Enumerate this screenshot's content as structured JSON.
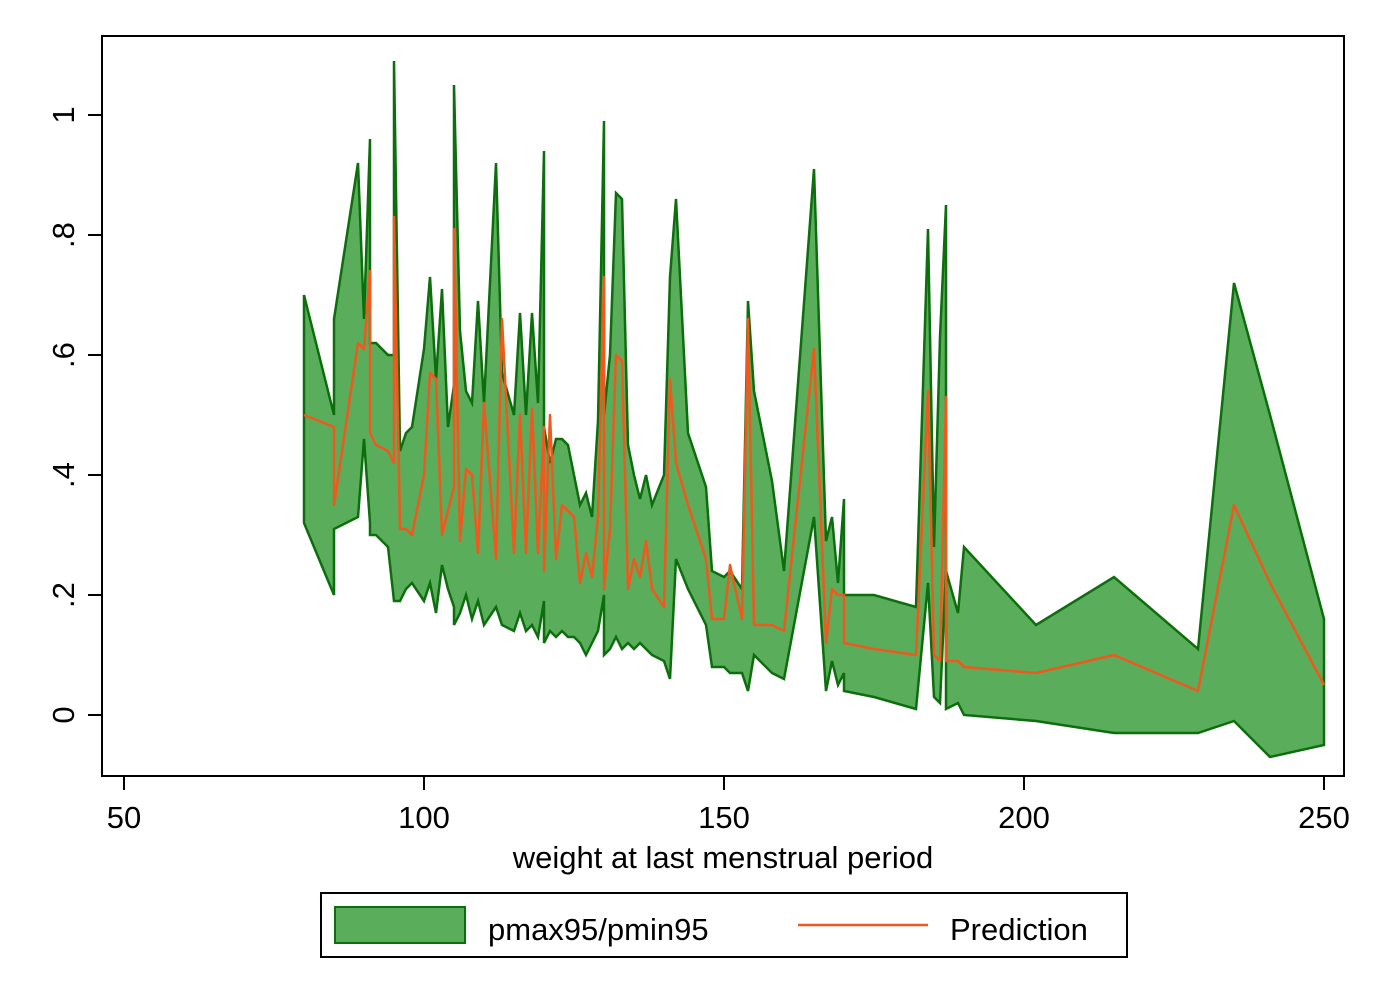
{
  "chart_data": {
    "type": "area",
    "xlabel": "weight at last menstrual period",
    "ylabel": "",
    "xlim": [
      50,
      250
    ],
    "ylim": [
      -0.1,
      1.13
    ],
    "xticks": [
      {
        "value": 50,
        "label": "50"
      },
      {
        "value": 100,
        "label": "100"
      },
      {
        "value": 150,
        "label": "150"
      },
      {
        "value": 200,
        "label": "200"
      },
      {
        "value": 250,
        "label": "250"
      }
    ],
    "yticks": [
      {
        "value": 0,
        "label": "0"
      },
      {
        "value": 0.2,
        "label": ".2"
      },
      {
        "value": 0.4,
        "label": ".4"
      },
      {
        "value": 0.6,
        "label": ".6"
      },
      {
        "value": 0.8,
        "label": ".8"
      },
      {
        "value": 1,
        "label": "1"
      }
    ],
    "grid": false,
    "legend_position": "bottom",
    "colors": {
      "band_fill": "#5aad5a",
      "band_stroke": "#0c6e0c",
      "prediction": "#f0581e"
    },
    "band": {
      "name": "pmax95/pmin95",
      "x": [
        80,
        85,
        85,
        89,
        90,
        91,
        91,
        92,
        94,
        95,
        95,
        96,
        97,
        98,
        100,
        101,
        102,
        103,
        104,
        105,
        105,
        106,
        107,
        108,
        109,
        110,
        112,
        113,
        115,
        116,
        117,
        118,
        119,
        120,
        120,
        121,
        122,
        123,
        124,
        125,
        126,
        127,
        128,
        129,
        130,
        130,
        131,
        132,
        133,
        134,
        135,
        136,
        137,
        138,
        140,
        141,
        142,
        144,
        147,
        148,
        150,
        151,
        153,
        154,
        155,
        158,
        160,
        165,
        167,
        168,
        169,
        170,
        170,
        175,
        182,
        184,
        185,
        186,
        187,
        187,
        189,
        190,
        202,
        215,
        229,
        235,
        241,
        250
      ],
      "pmax": [
        0.7,
        0.5,
        0.66,
        0.92,
        0.66,
        0.96,
        0.62,
        0.62,
        0.6,
        0.6,
        1.09,
        0.44,
        0.47,
        0.48,
        0.61,
        0.73,
        0.56,
        0.71,
        0.48,
        0.55,
        1.05,
        0.64,
        0.54,
        0.52,
        0.69,
        0.52,
        0.92,
        0.57,
        0.5,
        0.67,
        0.5,
        0.67,
        0.52,
        0.94,
        0.48,
        0.42,
        0.46,
        0.46,
        0.45,
        0.4,
        0.35,
        0.37,
        0.33,
        0.49,
        0.99,
        0.5,
        0.6,
        0.87,
        0.86,
        0.45,
        0.4,
        0.36,
        0.4,
        0.35,
        0.4,
        0.73,
        0.86,
        0.47,
        0.38,
        0.24,
        0.23,
        0.24,
        0.21,
        0.69,
        0.54,
        0.39,
        0.24,
        0.91,
        0.29,
        0.33,
        0.22,
        0.36,
        0.2,
        0.2,
        0.18,
        0.81,
        0.28,
        0.63,
        0.85,
        0.24,
        0.17,
        0.28,
        0.15,
        0.23,
        0.11,
        0.72,
        0.5,
        0.16
      ],
      "pmin": [
        0.32,
        0.2,
        0.31,
        0.33,
        0.46,
        0.32,
        0.3,
        0.3,
        0.28,
        0.19,
        0.19,
        0.19,
        0.21,
        0.22,
        0.19,
        0.22,
        0.17,
        0.25,
        0.21,
        0.18,
        0.15,
        0.17,
        0.2,
        0.16,
        0.19,
        0.15,
        0.18,
        0.15,
        0.14,
        0.17,
        0.14,
        0.15,
        0.13,
        0.19,
        0.12,
        0.14,
        0.13,
        0.14,
        0.13,
        0.13,
        0.12,
        0.1,
        0.12,
        0.14,
        0.2,
        0.1,
        0.11,
        0.13,
        0.11,
        0.12,
        0.11,
        0.12,
        0.11,
        0.1,
        0.09,
        0.06,
        0.26,
        0.21,
        0.15,
        0.08,
        0.08,
        0.07,
        0.07,
        0.04,
        0.1,
        0.07,
        0.06,
        0.33,
        0.04,
        0.09,
        0.05,
        0.07,
        0.04,
        0.03,
        0.01,
        0.22,
        0.03,
        0.02,
        0.24,
        0.01,
        0.02,
        0.0,
        -0.01,
        -0.03,
        -0.03,
        -0.01,
        -0.07,
        -0.05
      ]
    },
    "prediction": {
      "name": "Prediction",
      "x": [
        80,
        85,
        85,
        89,
        90,
        91,
        91,
        92,
        94,
        95,
        95,
        96,
        97,
        98,
        100,
        101,
        102,
        103,
        104,
        105,
        105,
        106,
        107,
        108,
        109,
        110,
        112,
        113,
        115,
        116,
        117,
        118,
        119,
        120,
        120,
        121,
        122,
        123,
        124,
        125,
        126,
        127,
        128,
        129,
        130,
        130,
        131,
        132,
        133,
        134,
        135,
        136,
        137,
        138,
        140,
        141,
        142,
        144,
        147,
        148,
        150,
        151,
        153,
        154,
        155,
        158,
        160,
        165,
        167,
        168,
        169,
        170,
        170,
        175,
        182,
        184,
        185,
        186,
        187,
        187,
        189,
        190,
        202,
        215,
        229,
        235,
        241,
        250
      ],
      "y": [
        0.5,
        0.48,
        0.35,
        0.62,
        0.61,
        0.74,
        0.47,
        0.45,
        0.44,
        0.42,
        0.83,
        0.31,
        0.31,
        0.3,
        0.4,
        0.57,
        0.56,
        0.3,
        0.34,
        0.38,
        0.81,
        0.29,
        0.41,
        0.4,
        0.27,
        0.52,
        0.26,
        0.66,
        0.27,
        0.5,
        0.27,
        0.51,
        0.27,
        0.48,
        0.24,
        0.5,
        0.26,
        0.35,
        0.34,
        0.33,
        0.22,
        0.27,
        0.23,
        0.33,
        0.73,
        0.21,
        0.31,
        0.6,
        0.59,
        0.21,
        0.26,
        0.23,
        0.29,
        0.21,
        0.18,
        0.56,
        0.42,
        0.35,
        0.26,
        0.16,
        0.16,
        0.25,
        0.16,
        0.66,
        0.15,
        0.15,
        0.14,
        0.61,
        0.12,
        0.21,
        0.2,
        0.2,
        0.12,
        0.11,
        0.1,
        0.54,
        0.1,
        0.09,
        0.53,
        0.09,
        0.09,
        0.08,
        0.07,
        0.1,
        0.04,
        0.35,
        0.22,
        0.05
      ]
    }
  }
}
